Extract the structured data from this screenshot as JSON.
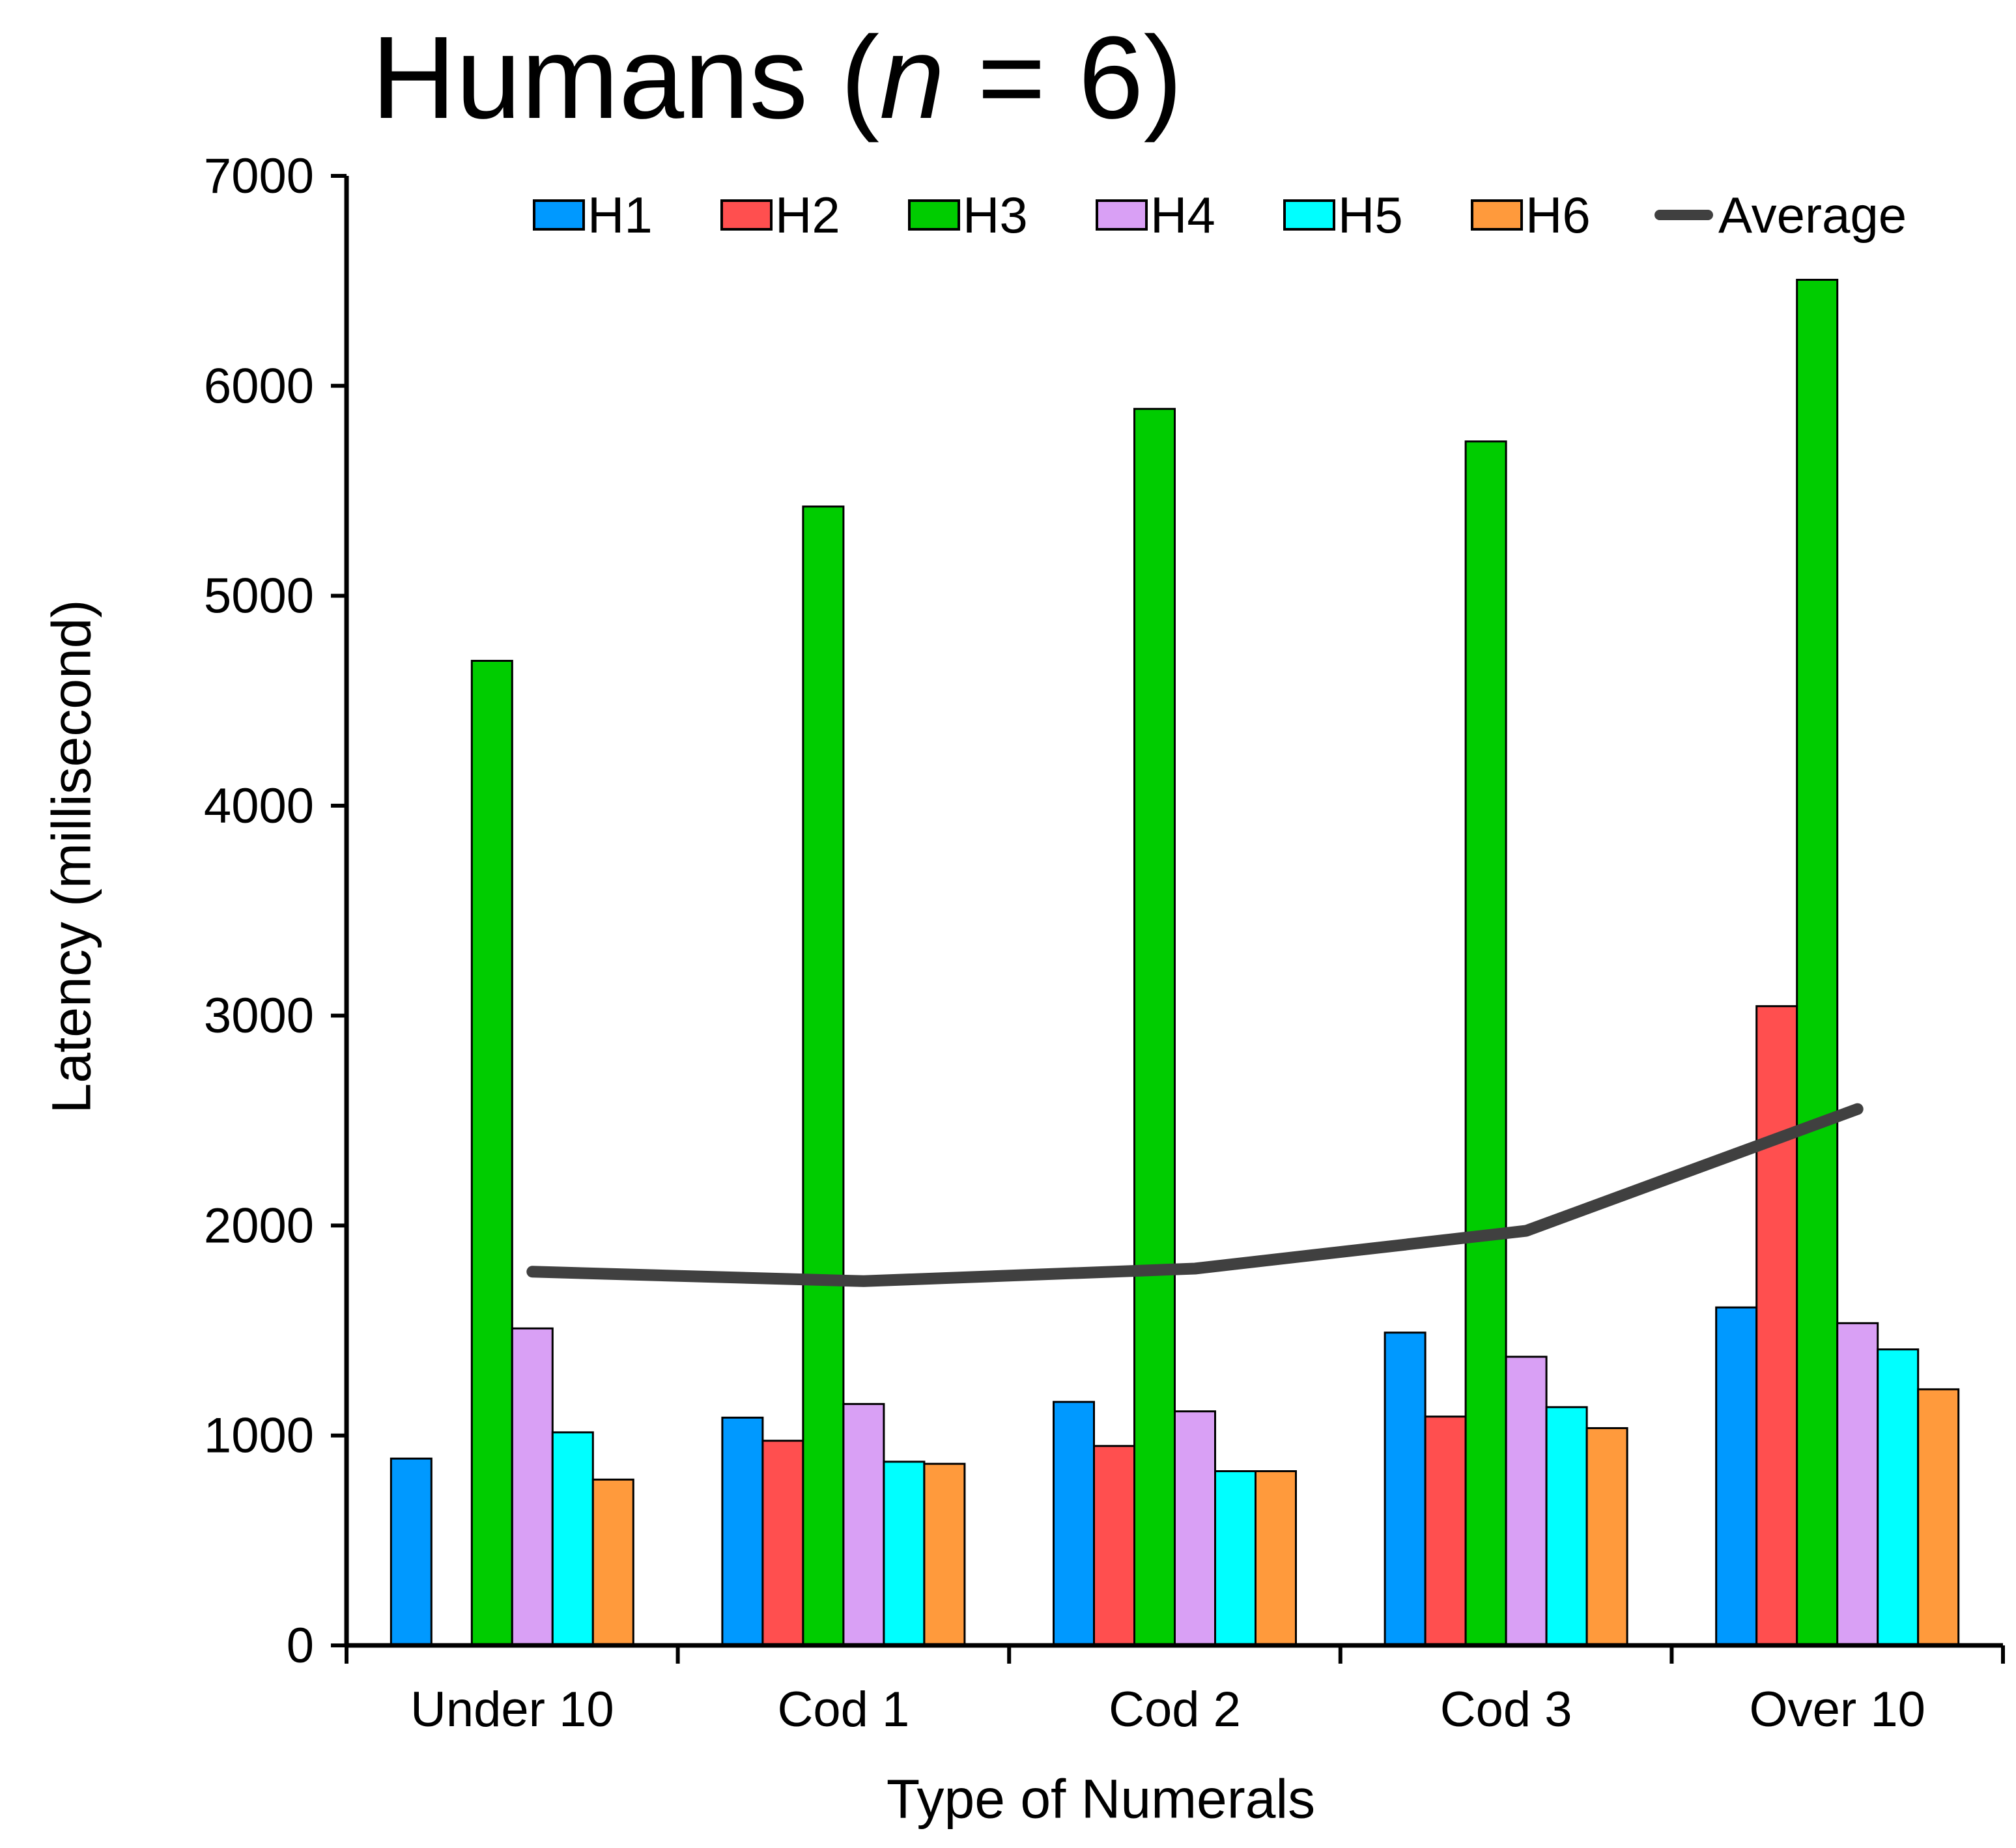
{
  "chart_data": {
    "type": "bar",
    "title_prefix": "Humans (",
    "title_italic": "n",
    "title_suffix": " = 6)",
    "xlabel": "Type of Numerals",
    "ylabel": "Latency (millisecond)",
    "ylim": [
      0,
      7000
    ],
    "yticks": [
      "0",
      "1000",
      "2000",
      "3000",
      "4000",
      "5000",
      "6000",
      "7000"
    ],
    "categories": [
      "Under 10",
      "Cod 1",
      "Cod 2",
      "Cod 3",
      "Over 10"
    ],
    "series": [
      {
        "name": "H1",
        "color": "#0099FF",
        "values": [
          890,
          1085,
          1160,
          1490,
          1610
        ]
      },
      {
        "name": "H2",
        "color": "#FF4F4F",
        "values": [
          0,
          975,
          950,
          1090,
          3045
        ]
      },
      {
        "name": "H3",
        "color": "#00CC00",
        "values": [
          4690,
          5425,
          5890,
          5735,
          6505
        ]
      },
      {
        "name": "H4",
        "color": "#D9A0F5",
        "values": [
          1510,
          1150,
          1115,
          1375,
          1535
        ]
      },
      {
        "name": "H5",
        "color": "#00FFFF",
        "values": [
          1015,
          875,
          830,
          1135,
          1410
        ]
      },
      {
        "name": "H6",
        "color": "#FF9A3C",
        "values": [
          790,
          865,
          830,
          1035,
          1220
        ]
      }
    ],
    "average": {
      "name": "Average",
      "color": "#404040",
      "values": [
        1780,
        1735,
        1795,
        1975,
        2555
      ]
    },
    "legend_position": "top"
  }
}
